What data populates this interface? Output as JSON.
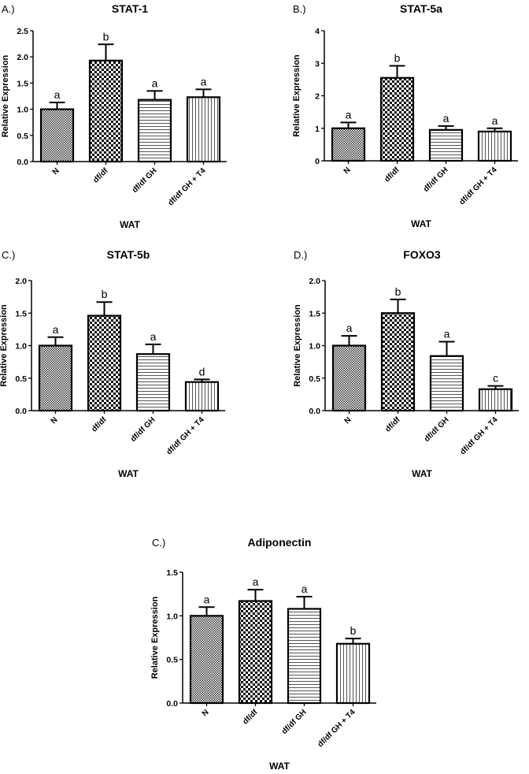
{
  "chart_data": [
    {
      "type": "bar",
      "panel_label": "A.)",
      "title": "STAT-1",
      "xlabel": "WAT",
      "ylabel": "Relative Expression",
      "categories": [
        "N",
        "df/df",
        "df/df GH",
        "df/df GH + T4"
      ],
      "values": [
        1.0,
        1.93,
        1.18,
        1.23
      ],
      "errors": [
        0.13,
        0.31,
        0.17,
        0.15
      ],
      "significance": [
        "a",
        "b",
        "a",
        "a"
      ],
      "ylim": [
        0,
        2.5
      ],
      "yticks": [
        "0.0",
        "0.5",
        "1.0",
        "1.5",
        "2.0",
        "2.5"
      ],
      "grid": false
    },
    {
      "type": "bar",
      "panel_label": "B.)",
      "title": "STAT-5a",
      "xlabel": "WAT",
      "ylabel": "Relative Expression",
      "categories": [
        "N",
        "df/df",
        "df/df GH",
        "df/df GH + T4"
      ],
      "values": [
        1.0,
        2.55,
        0.95,
        0.9
      ],
      "errors": [
        0.18,
        0.37,
        0.12,
        0.1
      ],
      "significance": [
        "a",
        "b",
        "a",
        "a"
      ],
      "ylim": [
        0,
        4
      ],
      "yticks": [
        "0",
        "1",
        "2",
        "3",
        "4"
      ],
      "grid": false
    },
    {
      "type": "bar",
      "panel_label": "C.)",
      "title": "STAT-5b",
      "xlabel": "WAT",
      "ylabel": "Relative Expression",
      "categories": [
        "N",
        "df/df",
        "df/df GH",
        "df/df GH + T4"
      ],
      "values": [
        1.0,
        1.46,
        0.87,
        0.44
      ],
      "errors": [
        0.13,
        0.21,
        0.15,
        0.04
      ],
      "significance": [
        "a",
        "b",
        "a",
        "d"
      ],
      "ylim": [
        0,
        2.0
      ],
      "yticks": [
        "0.0",
        "0.5",
        "1.0",
        "1.5",
        "2.0"
      ],
      "grid": false
    },
    {
      "type": "bar",
      "panel_label": "D.)",
      "title": "FOXO3",
      "xlabel": "WAT",
      "ylabel": "Relative Expression",
      "categories": [
        "N",
        "df/df",
        "df/df GH",
        "df/df GH + T4"
      ],
      "values": [
        1.0,
        1.5,
        0.84,
        0.33
      ],
      "errors": [
        0.15,
        0.21,
        0.22,
        0.05
      ],
      "significance": [
        "a",
        "b",
        "a",
        "c"
      ],
      "ylim": [
        0,
        2.0
      ],
      "yticks": [
        "0.0",
        "0.5",
        "1.0",
        "1.5",
        "2.0"
      ],
      "grid": false
    },
    {
      "type": "bar",
      "panel_label": "C.)",
      "title": "Adiponectin",
      "xlabel": "WAT",
      "ylabel": "Relative Expression",
      "categories": [
        "N",
        "df/df",
        "df/df GH",
        "df/df GH + T4"
      ],
      "values": [
        1.0,
        1.17,
        1.08,
        0.68
      ],
      "errors": [
        0.1,
        0.13,
        0.14,
        0.06
      ],
      "significance": [
        "a",
        "a",
        "a",
        "b"
      ],
      "ylim": [
        0,
        1.5
      ],
      "yticks": [
        "0.0",
        "0.5",
        "1.0",
        "1.5"
      ],
      "grid": false
    }
  ]
}
